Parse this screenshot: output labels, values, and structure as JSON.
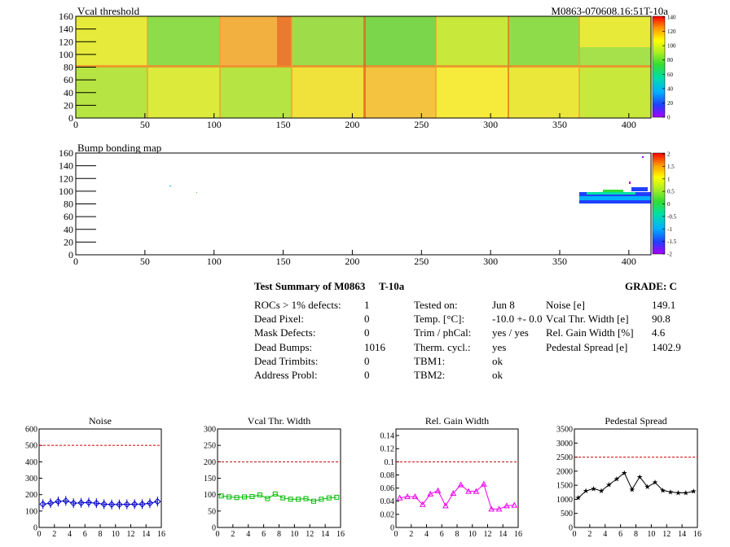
{
  "maps": [
    {
      "title": "Vcal threshold",
      "id_label": "M0863-070608.16:51T-10a",
      "x_ticks": [
        "0",
        "50",
        "100",
        "150",
        "200",
        "250",
        "300",
        "350",
        "400"
      ],
      "y_ticks": [
        "0",
        "20",
        "40",
        "60",
        "80",
        "100",
        "120",
        "140",
        "160"
      ],
      "z_ticks": [
        "0",
        "20",
        "40",
        "60",
        "80",
        "100",
        "120",
        "140"
      ]
    },
    {
      "title": "Bump bonding map",
      "x_ticks": [
        "0",
        "50",
        "100",
        "150",
        "200",
        "250",
        "300",
        "350",
        "400"
      ],
      "y_ticks": [
        "0",
        "20",
        "40",
        "60",
        "80",
        "100",
        "120",
        "140",
        "160"
      ],
      "z_ticks": [
        "-2",
        "-1.5",
        "-1",
        "-0.5",
        "0",
        "0.5",
        "1",
        "1.5",
        "2"
      ]
    }
  ],
  "summary": {
    "title": "Test Summary of M0863",
    "temp_tag": "T-10a",
    "grade": "GRADE:  C",
    "col1": [
      {
        "label": "ROCs > 1% defects:",
        "value": "1"
      },
      {
        "label": "Dead Pixel:",
        "value": "0"
      },
      {
        "label": "Mask Defects:",
        "value": "0"
      },
      {
        "label": "Dead Bumps:",
        "value": "1016"
      },
      {
        "label": "Dead Trimbits:",
        "value": "0"
      },
      {
        "label": "Address Probl:",
        "value": "0"
      }
    ],
    "col2": [
      {
        "label": "Tested on:",
        "value": "Jun 8"
      },
      {
        "label": "Temp. [°C]:",
        "value": "-10.0 +- 0.0"
      },
      {
        "label": "Trim / phCal:",
        "value": "yes / yes"
      },
      {
        "label": "Therm. cycl.:",
        "value": "yes"
      },
      {
        "label": "TBM1:",
        "value": "ok"
      },
      {
        "label": "TBM2:",
        "value": "ok"
      }
    ],
    "col3": [
      {
        "label": "Noise [e]",
        "value": "149.1"
      },
      {
        "label": "Vcal Thr. Width [e]",
        "value": "90.8"
      },
      {
        "label": "Rel. Gain Width [%]",
        "value": "4.6"
      },
      {
        "label": "Pedestal Spread [e]",
        "value": "1402.9"
      }
    ]
  },
  "chart_data": [
    {
      "type": "line",
      "title": "Noise",
      "color": "#0000cc",
      "marker": "diamond",
      "x": [
        0,
        1,
        2,
        3,
        4,
        5,
        6,
        7,
        8,
        9,
        10,
        11,
        12,
        13,
        14,
        15
      ],
      "values": [
        142,
        148,
        158,
        162,
        148,
        150,
        152,
        148,
        142,
        140,
        140,
        141,
        142,
        142,
        148,
        158
      ],
      "ylim": [
        0,
        600
      ],
      "threshold": 500,
      "y_ticks": [
        "0",
        "100",
        "200",
        "300",
        "400",
        "500",
        "600"
      ],
      "x_ticks": [
        "0",
        "2",
        "4",
        "6",
        "8",
        "10",
        "12",
        "14",
        "16"
      ]
    },
    {
      "type": "line",
      "title": "Vcal Thr. Width",
      "color": "#00bb00",
      "marker": "square",
      "x": [
        0,
        1,
        2,
        3,
        4,
        5,
        6,
        7,
        8,
        9,
        10,
        11,
        12,
        13,
        14,
        15
      ],
      "values": [
        96,
        93,
        91,
        93,
        94,
        99,
        88,
        102,
        90,
        86,
        86,
        88,
        80,
        86,
        90,
        92
      ],
      "ylim": [
        0,
        300
      ],
      "threshold": 200,
      "y_ticks": [
        "0",
        "50",
        "100",
        "150",
        "200",
        "250",
        "300"
      ],
      "x_ticks": [
        "0",
        "2",
        "4",
        "6",
        "8",
        "10",
        "12",
        "14",
        "16"
      ]
    },
    {
      "type": "line",
      "title": "Rel. Gain Width",
      "color": "#ee00ee",
      "marker": "triangle",
      "x": [
        0,
        1,
        2,
        3,
        4,
        5,
        6,
        7,
        8,
        9,
        10,
        11,
        12,
        13,
        14,
        15
      ],
      "values": [
        0.045,
        0.047,
        0.047,
        0.035,
        0.051,
        0.056,
        0.033,
        0.052,
        0.065,
        0.055,
        0.055,
        0.066,
        0.028,
        0.028,
        0.033,
        0.034
      ],
      "ylim": [
        0,
        0.15
      ],
      "threshold": 0.1,
      "y_ticks": [
        "0",
        "0.02",
        "0.04",
        "0.06",
        "0.08",
        "0.1",
        "0.12",
        "0.14"
      ],
      "x_ticks": [
        "0",
        "2",
        "4",
        "6",
        "8",
        "10",
        "12",
        "14",
        "16"
      ]
    },
    {
      "type": "line",
      "title": "Pedestal Spread",
      "color": "#000000",
      "marker": "star",
      "x": [
        0,
        1,
        2,
        3,
        4,
        5,
        6,
        7,
        8,
        9,
        10,
        11,
        12,
        13,
        14,
        15
      ],
      "values": [
        1050,
        1300,
        1380,
        1300,
        1520,
        1720,
        1940,
        1350,
        1800,
        1440,
        1600,
        1320,
        1260,
        1230,
        1230,
        1280
      ],
      "ylim": [
        0,
        3500
      ],
      "threshold": 2500,
      "y_ticks": [
        "0",
        "500",
        "1000",
        "1500",
        "2000",
        "2500",
        "3000",
        "3500"
      ],
      "x_ticks": [
        "0",
        "2",
        "4",
        "6",
        "8",
        "10",
        "12",
        "14",
        "16"
      ]
    }
  ]
}
